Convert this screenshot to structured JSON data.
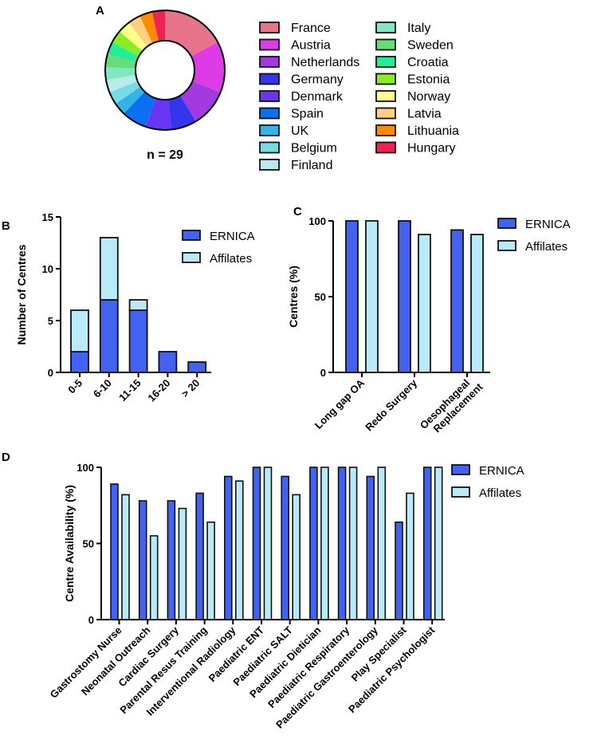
{
  "chart_data": [
    {
      "panel": "A",
      "type": "pie",
      "annotation": "n = 29",
      "slices": [
        {
          "label": "France",
          "value": 5,
          "color": "#e8748c"
        },
        {
          "label": "Austria",
          "value": 4,
          "color": "#dd3ae8"
        },
        {
          "label": "Netherlands",
          "value": 3,
          "color": "#a33ae0"
        },
        {
          "label": "Germany",
          "value": 2,
          "color": "#3535ee"
        },
        {
          "label": "Denmark",
          "value": 2,
          "color": "#6a35f2"
        },
        {
          "label": "Spain",
          "value": 2,
          "color": "#0a6ff0"
        },
        {
          "label": "UK",
          "value": 1,
          "color": "#33b3e6"
        },
        {
          "label": "Belgium",
          "value": 1,
          "color": "#77dbe6"
        },
        {
          "label": "Finland",
          "value": 1,
          "color": "#b8ecec"
        },
        {
          "label": "Italy",
          "value": 1,
          "color": "#80e8c0"
        },
        {
          "label": "Sweden",
          "value": 1,
          "color": "#66dd77"
        },
        {
          "label": "Croatia",
          "value": 1,
          "color": "#22ee99"
        },
        {
          "label": "Estonia",
          "value": 1,
          "color": "#88ee22"
        },
        {
          "label": "Norway",
          "value": 1,
          "color": "#ffff88"
        },
        {
          "label": "Latvia",
          "value": 1,
          "color": "#ffd080"
        },
        {
          "label": "Lithuania",
          "value": 1,
          "color": "#ff8c00"
        },
        {
          "label": "Hungary",
          "value": 1,
          "color": "#ee2255"
        }
      ]
    },
    {
      "panel": "B",
      "type": "bar",
      "stacked": true,
      "categories": [
        "0-5",
        "6-10",
        "11-15",
        "16-20",
        "> 20"
      ],
      "series": [
        {
          "name": "ERNICA",
          "values": [
            2,
            7,
            6,
            2,
            1
          ],
          "color": "#4262f2"
        },
        {
          "name": "Affilates",
          "values": [
            4,
            6,
            1,
            0,
            0
          ],
          "color": "#b8eafa"
        }
      ],
      "xlabel": "",
      "ylabel": "Number of Centres",
      "ylim": [
        0,
        15
      ],
      "yticks": [
        "0",
        "5",
        "10",
        "15"
      ],
      "legend": "top-right"
    },
    {
      "panel": "C",
      "type": "bar",
      "categories": [
        "Long gap OA",
        "Redo Surgery",
        "Oesophageal Replacement"
      ],
      "series": [
        {
          "name": "ERNICA",
          "values": [
            100,
            100,
            94
          ],
          "color": "#4262f2"
        },
        {
          "name": "Affilates",
          "values": [
            100,
            91,
            91
          ],
          "color": "#b8eafa"
        }
      ],
      "ylabel": "Centres (%)",
      "ylim": [
        0,
        100
      ],
      "yticks": [
        "0",
        "50",
        "100"
      ],
      "legend": "top-right"
    },
    {
      "panel": "D",
      "type": "bar",
      "categories": [
        "Gastrostomy Nurse",
        "Neonatal Outreach",
        "Cardiac Surgery",
        "Parental Resus Training",
        "Interventional Radiology",
        "Paediatric ENT",
        "Paediatric SALT",
        "Paediatric Dietician",
        "Paediatric Respiratory",
        "Paediatric Gastroenterology",
        "Play Specialist",
        "Paediatric Psychologist"
      ],
      "series": [
        {
          "name": "ERNICA",
          "values": [
            89,
            78,
            78,
            83,
            94,
            100,
            94,
            100,
            100,
            94,
            64,
            100
          ],
          "color": "#4262f2"
        },
        {
          "name": "Affilates",
          "values": [
            82,
            55,
            73,
            64,
            91,
            100,
            82,
            100,
            100,
            100,
            83,
            100
          ],
          "color": "#b8eafa"
        }
      ],
      "ylabel": "Centre Availability (%)",
      "ylim": [
        0,
        100
      ],
      "yticks": [
        "0",
        "50",
        "100"
      ],
      "legend": "top-right"
    }
  ]
}
